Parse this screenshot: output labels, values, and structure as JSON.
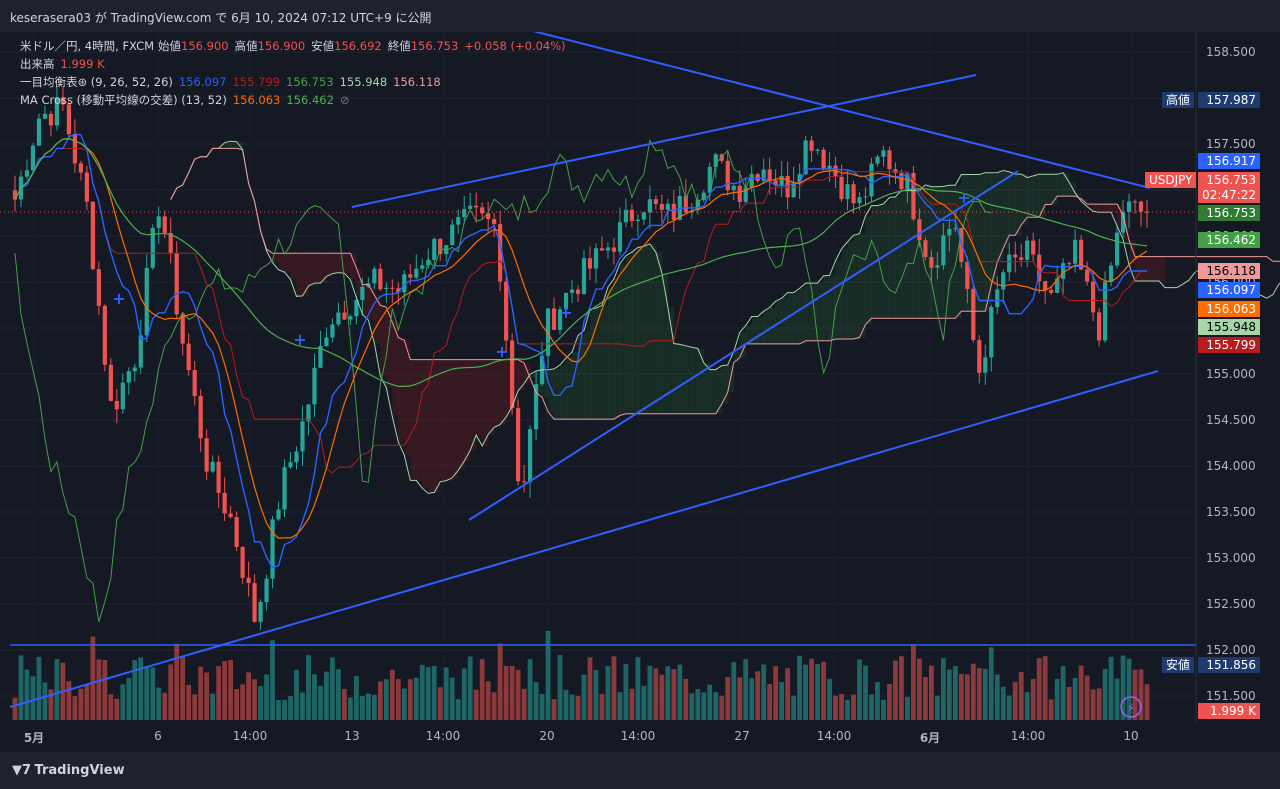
{
  "header": {
    "published": "keserasera03 が TradingView.com で 6月 10, 2024 07:12 UTC+9 に公開"
  },
  "legend": {
    "line1": {
      "symbol": "米ドル／円, 4時間, FXCM",
      "open_label": "始値",
      "open": "156.900",
      "high_label": "高値",
      "high": "156.900",
      "low_label": "安値",
      "low": "156.692",
      "close_label": "終値",
      "close": "156.753",
      "change": "+0.058 (+0.04%)"
    },
    "line2": {
      "label": "出来高",
      "value": "1.999 K"
    },
    "line3": {
      "label": "一目均衡表⊛ (9, 26, 52, 26)",
      "v1": "156.097",
      "v2": "155.799",
      "v3": "156.753",
      "v4": "155.948",
      "v5": "156.118"
    },
    "line4": {
      "label": "MA Cross (移動平均線の交差) (13, 52)",
      "v1": "156.063",
      "v2": "156.462",
      "icon": "⊘"
    }
  },
  "price_labels": {
    "high_tag": "高値",
    "high_value": "157.987",
    "low_tag": "安値",
    "low_value": "151.856",
    "symbol_tag": "USDJPY",
    "countdown": "02:47:22",
    "p1": "156.917",
    "p2": "156.753",
    "p3": "156.753",
    "p4": "156.462",
    "p5": "156.118",
    "p6": "156.097",
    "p7": "156.063",
    "p8": "155.948",
    "p9": "155.799",
    "vol": "1.999 K"
  },
  "colors": {
    "up": "#26a69a",
    "down": "#ef5350",
    "tenkan": "#2962ff",
    "kijun": "#b71c1c",
    "chikou": "#43a047",
    "spanA": "#a5d6a7",
    "spanB": "#ef9a9a",
    "ma13": "#ff6d00",
    "ma52": "#4caf50",
    "trend": "#2f5fff"
  },
  "footer": {
    "brand": "TradingView"
  },
  "chart_data": {
    "type": "candlestick",
    "title": "米ドル／円, 4時間, FXCM",
    "ylim": [
      151.25,
      158.75
    ],
    "y_ticks": [
      "158.500",
      "158.000",
      "157.500",
      "157.000",
      "156.500",
      "156.000",
      "155.500",
      "155.000",
      "154.500",
      "154.000",
      "153.500",
      "153.000",
      "152.500",
      "152.000",
      "151.500"
    ],
    "x_ticks": [
      "5月",
      "6",
      "14:00",
      "13",
      "14:00",
      "20",
      "14:00",
      "27",
      "14:00",
      "6月",
      "14:00",
      "10"
    ],
    "close_path": [
      156.9,
      157.8,
      157.9,
      156.8,
      154.6,
      155.2,
      156.9,
      155.3,
      154.0,
      153.4,
      152.3,
      153.7,
      154.5,
      155.6,
      155.8,
      156.0,
      155.9,
      156.3,
      156.5,
      156.7,
      156.6,
      153.6,
      155.5,
      155.9,
      156.2,
      156.5,
      156.9,
      156.7,
      156.9,
      157.3,
      157.0,
      157.3,
      157.0,
      157.6,
      157.2,
      156.8,
      157.4,
      157.1,
      156.2,
      156.7,
      155.0,
      156.1,
      156.3,
      155.8,
      156.3,
      155.5,
      156.8,
      156.75
    ],
    "last_price": 156.753,
    "high_marker": 157.987,
    "low_marker": 151.856,
    "horizontal_line": 152.06
  }
}
